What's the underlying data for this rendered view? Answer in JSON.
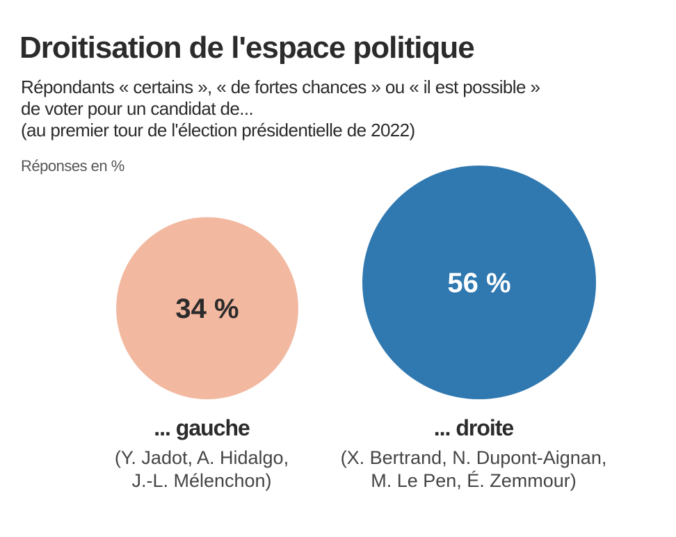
{
  "chart_data": {
    "type": "bubble",
    "title": "Droitisation de l'espace politique",
    "subtitle": [
      "Répondants « certains », « de fortes chances » ou « il est possible »",
      "de voter pour un candidat de...",
      "(au premier tour de l'élection présidentielle de 2022)"
    ],
    "unit_label": "Réponses en %",
    "categories": [
      "... gauche",
      "... droite"
    ],
    "values": [
      34,
      56
    ],
    "value_labels": [
      "34 %",
      "56 %"
    ],
    "candidates": [
      [
        "(Y. Jadot, A. Hidalgo,",
        "J.-L. Mélenchon)"
      ],
      [
        "(X. Bertrand, N. Dupont-Aignan,",
        "M. Le Pen, É. Zemmour)"
      ]
    ],
    "colors": [
      "#f2b8a0",
      "#2f78b0"
    ],
    "value_text_colors": [
      "#2b2b2b",
      "#ffffff"
    ]
  }
}
